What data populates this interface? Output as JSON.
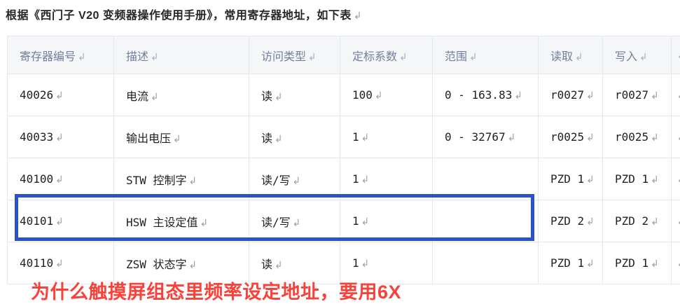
{
  "heading": {
    "text": "根据《西门子 V20 变频器操作使用手册》，常用寄存器地址，如下表"
  },
  "glyphs": {
    "return_mark": "↲"
  },
  "table": {
    "headers": {
      "register": "寄存器编号",
      "description": "描述",
      "access": "访问类型",
      "scale": "定标系数",
      "range": "范围",
      "read": "读取",
      "write": "写入"
    },
    "rows": [
      {
        "register": "40026",
        "description": "电流",
        "access": "读",
        "scale": "100",
        "range": "0 - 163.83",
        "read": "r0027",
        "write": "r0027"
      },
      {
        "register": "40033",
        "description": "输出电压",
        "access": "读",
        "scale": "1",
        "range": "0 - 32767",
        "read": "r0025",
        "write": "r0025"
      },
      {
        "register": "40100",
        "description": "STW 控制字",
        "access": "读/写",
        "scale": "1",
        "range": "",
        "read": "PZD 1",
        "write": "PZD 1"
      },
      {
        "register": "40101",
        "description": "HSW 主设定值",
        "access": "读/写",
        "scale": "1",
        "range": "",
        "read": "PZD 2",
        "write": "PZD 2"
      },
      {
        "register": "40110",
        "description": "ZSW 状态字",
        "access": "读",
        "scale": "1",
        "range": "",
        "read": "PZD 1",
        "write": "PZD 1"
      }
    ],
    "highlight": {
      "register": "40101",
      "border_color": "#2b53c8"
    }
  },
  "annotation": {
    "text": "为什么触摸屏组态里频率设定地址，要用6X",
    "color": "#f9423a"
  },
  "colors": {
    "header_bg": "#f4f6f8",
    "header_text": "#72809e",
    "grid_line": "#e4e7eb",
    "body_text": "#1f1f1f",
    "return_mark": "#9aa1a8"
  }
}
